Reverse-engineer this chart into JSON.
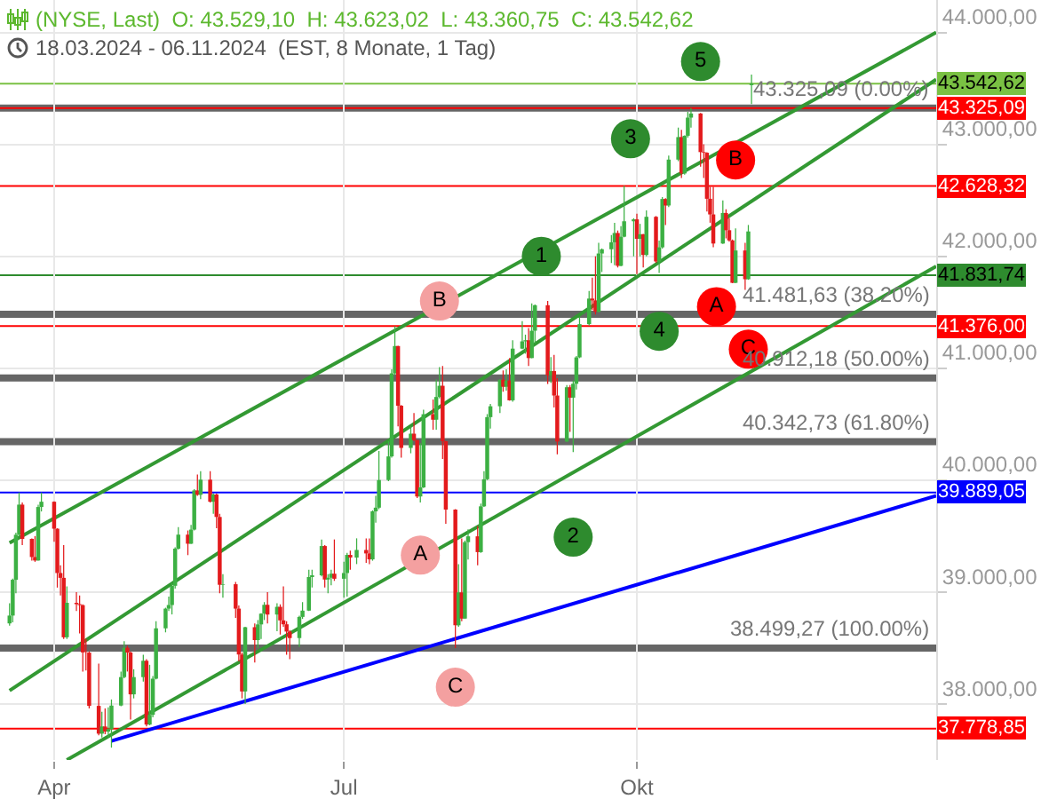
{
  "chart_data": {
    "type": "candlestick",
    "title": "(NYSE, Last)  O: 43.529,10  H: 43.623,02  L: 43.360,75  C: 43.542,62",
    "subtitle": "18.03.2024 - 06.11.2024  (EST, 8 Monate, 1 Tag)",
    "x": [
      "2024-03-18",
      "2024-03-19",
      "2024-03-20",
      "2024-03-21",
      "2024-03-22",
      "2024-03-25",
      "2024-03-26",
      "2024-03-27",
      "2024-03-28",
      "2024-04-01",
      "2024-04-02",
      "2024-04-03",
      "2024-04-04",
      "2024-04-05",
      "2024-04-08",
      "2024-04-09",
      "2024-04-10",
      "2024-04-11",
      "2024-04-12",
      "2024-04-15",
      "2024-04-16",
      "2024-04-17",
      "2024-04-18",
      "2024-04-19",
      "2024-04-22",
      "2024-04-23",
      "2024-04-24",
      "2024-04-25",
      "2024-04-26",
      "2024-04-29",
      "2024-04-30",
      "2024-05-01",
      "2024-05-02",
      "2024-05-03",
      "2024-05-06",
      "2024-05-07",
      "2024-05-08",
      "2024-05-09",
      "2024-05-10",
      "2024-05-13",
      "2024-05-14",
      "2024-05-15",
      "2024-05-16",
      "2024-05-17",
      "2024-05-20",
      "2024-05-21",
      "2024-05-22",
      "2024-05-23",
      "2024-05-24",
      "2024-05-28",
      "2024-05-29",
      "2024-05-30",
      "2024-05-31",
      "2024-06-03",
      "2024-06-04",
      "2024-06-05",
      "2024-06-06",
      "2024-06-07",
      "2024-06-10",
      "2024-06-11",
      "2024-06-12",
      "2024-06-13",
      "2024-06-14",
      "2024-06-17",
      "2024-06-18",
      "2024-06-20",
      "2024-06-21",
      "2024-06-24",
      "2024-06-25",
      "2024-06-26",
      "2024-06-27",
      "2024-06-28",
      "2024-07-01",
      "2024-07-02",
      "2024-07-03",
      "2024-07-05",
      "2024-07-08",
      "2024-07-09",
      "2024-07-10",
      "2024-07-11",
      "2024-07-12",
      "2024-07-15",
      "2024-07-16",
      "2024-07-17",
      "2024-07-18",
      "2024-07-19",
      "2024-07-22",
      "2024-07-23",
      "2024-07-24",
      "2024-07-25",
      "2024-07-26",
      "2024-07-29",
      "2024-07-30",
      "2024-07-31",
      "2024-08-01",
      "2024-08-02",
      "2024-08-05",
      "2024-08-06",
      "2024-08-07",
      "2024-08-08",
      "2024-08-09",
      "2024-08-12",
      "2024-08-13",
      "2024-08-14",
      "2024-08-15",
      "2024-08-16",
      "2024-08-19",
      "2024-08-20",
      "2024-08-21",
      "2024-08-22",
      "2024-08-23",
      "2024-08-26",
      "2024-08-27",
      "2024-08-28",
      "2024-08-29",
      "2024-08-30",
      "2024-09-03",
      "2024-09-04",
      "2024-09-05",
      "2024-09-06",
      "2024-09-09",
      "2024-09-10",
      "2024-09-11",
      "2024-09-12",
      "2024-09-13",
      "2024-09-16",
      "2024-09-17",
      "2024-09-18",
      "2024-09-19",
      "2024-09-20",
      "2024-09-23",
      "2024-09-24",
      "2024-09-25",
      "2024-09-26",
      "2024-09-27",
      "2024-09-30",
      "2024-10-01",
      "2024-10-02",
      "2024-10-03",
      "2024-10-04",
      "2024-10-07",
      "2024-10-08",
      "2024-10-09",
      "2024-10-10",
      "2024-10-11",
      "2024-10-14",
      "2024-10-15",
      "2024-10-16",
      "2024-10-17",
      "2024-10-18",
      "2024-10-21",
      "2024-10-22",
      "2024-10-23",
      "2024-10-24",
      "2024-10-25",
      "2024-10-28",
      "2024-10-29",
      "2024-10-30",
      "2024-10-31",
      "2024-11-01",
      "2024-11-04",
      "2024-11-05",
      "2024-11-06"
    ],
    "ohlc": [
      [
        38720,
        38900,
        38700,
        38790
      ],
      [
        38790,
        39120,
        38730,
        39110
      ],
      [
        39110,
        39530,
        38990,
        39512
      ],
      [
        39512,
        39890,
        39500,
        39781
      ],
      [
        39781,
        39800,
        39420,
        39475
      ],
      [
        39475,
        39480,
        39280,
        39313
      ],
      [
        39313,
        39500,
        39270,
        39282
      ],
      [
        39282,
        39780,
        39280,
        39760
      ],
      [
        39760,
        39890,
        39720,
        39807
      ],
      [
        39807,
        39810,
        39450,
        39566
      ],
      [
        39566,
        39570,
        39040,
        39170
      ],
      [
        39170,
        39240,
        38970,
        39127
      ],
      [
        39127,
        39420,
        38580,
        38596
      ],
      [
        38596,
        39050,
        38580,
        38904
      ],
      [
        38904,
        39000,
        38830,
        38892
      ],
      [
        38892,
        38970,
        38630,
        38883
      ],
      [
        38883,
        38890,
        38290,
        38461
      ],
      [
        38461,
        38580,
        38300,
        38459
      ],
      [
        38459,
        38470,
        37960,
        37983
      ],
      [
        37983,
        38360,
        37720,
        37735
      ],
      [
        37735,
        37930,
        37700,
        37799
      ],
      [
        37799,
        37960,
        37730,
        37753
      ],
      [
        37753,
        37970,
        37700,
        37775
      ],
      [
        37775,
        38040,
        37610,
        37986
      ],
      [
        37986,
        38290,
        37980,
        38240
      ],
      [
        38240,
        38560,
        38230,
        38503
      ],
      [
        38503,
        38520,
        38290,
        38460
      ],
      [
        38460,
        38470,
        37860,
        38086
      ],
      [
        38086,
        38310,
        38050,
        38240
      ],
      [
        38240,
        38440,
        38200,
        38386
      ],
      [
        38386,
        38400,
        37800,
        37816
      ],
      [
        37816,
        38350,
        37810,
        37903
      ],
      [
        37903,
        38250,
        37880,
        38226
      ],
      [
        38226,
        38740,
        38220,
        38676
      ],
      [
        38676,
        38860,
        38640,
        38852
      ],
      [
        38852,
        38960,
        38830,
        38884
      ],
      [
        38884,
        39080,
        38800,
        39056
      ],
      [
        39056,
        39400,
        39030,
        39388
      ],
      [
        39388,
        39580,
        39380,
        39513
      ],
      [
        39513,
        39550,
        39330,
        39432
      ],
      [
        39432,
        39600,
        39430,
        39558
      ],
      [
        39558,
        39920,
        39550,
        39908
      ],
      [
        39908,
        40050,
        39860,
        39869
      ],
      [
        39869,
        40080,
        39830,
        40004
      ],
      [
        40004,
        40080,
        39800,
        39807
      ],
      [
        39807,
        39880,
        39700,
        39872
      ],
      [
        39872,
        39880,
        39570,
        39671
      ],
      [
        39671,
        39700,
        38990,
        39065
      ],
      [
        39065,
        39160,
        38950,
        39070
      ],
      [
        39070,
        39090,
        38770,
        38852
      ],
      [
        38852,
        38880,
        38380,
        38442
      ],
      [
        38442,
        38460,
        38050,
        38112
      ],
      [
        38112,
        38690,
        38000,
        38686
      ],
      [
        38686,
        38720,
        38370,
        38571
      ],
      [
        38571,
        38750,
        38500,
        38711
      ],
      [
        38711,
        38810,
        38580,
        38807
      ],
      [
        38807,
        38910,
        38750,
        38886
      ],
      [
        38886,
        39000,
        38720,
        38799
      ],
      [
        38799,
        38900,
        38650,
        38868
      ],
      [
        38868,
        38890,
        38620,
        38747
      ],
      [
        38747,
        39050,
        38690,
        38712
      ],
      [
        38712,
        38740,
        38440,
        38647
      ],
      [
        38647,
        38660,
        38400,
        38589
      ],
      [
        38589,
        38790,
        38510,
        38778
      ],
      [
        38778,
        38910,
        38760,
        38834
      ],
      [
        38834,
        39200,
        38830,
        39134
      ],
      [
        39134,
        39200,
        39040,
        39150
      ],
      [
        39150,
        39470,
        39140,
        39411
      ],
      [
        39411,
        39420,
        39040,
        39112
      ],
      [
        39112,
        39160,
        38990,
        39128
      ],
      [
        39128,
        39200,
        39060,
        39164
      ],
      [
        39164,
        39470,
        39100,
        39119
      ],
      [
        39119,
        39270,
        38950,
        39170
      ],
      [
        39170,
        39350,
        38960,
        39332
      ],
      [
        39332,
        39370,
        39200,
        39308
      ],
      [
        39308,
        39480,
        39250,
        39376
      ],
      [
        39376,
        39480,
        39260,
        39345
      ],
      [
        39345,
        39480,
        39250,
        39292
      ],
      [
        39292,
        39730,
        39280,
        39721
      ],
      [
        39721,
        39860,
        39620,
        39754
      ],
      [
        39754,
        40260,
        39740,
        40001
      ],
      [
        40001,
        40350,
        39990,
        40212
      ],
      [
        40212,
        40990,
        40200,
        40954
      ],
      [
        40954,
        41376,
        40940,
        41198
      ],
      [
        41198,
        41200,
        40480,
        40665
      ],
      [
        40665,
        40670,
        40200,
        40288
      ],
      [
        40288,
        40480,
        40240,
        40415
      ],
      [
        40415,
        40600,
        40350,
        40358
      ],
      [
        40358,
        40360,
        39840,
        39854
      ],
      [
        39854,
        40330,
        39800,
        39935
      ],
      [
        39935,
        40630,
        39930,
        40589
      ],
      [
        40589,
        40720,
        40450,
        40540
      ],
      [
        40540,
        40900,
        40450,
        40743
      ],
      [
        40743,
        41010,
        40730,
        40843
      ],
      [
        40843,
        41020,
        40190,
        40348
      ],
      [
        40348,
        40350,
        39610,
        39737
      ],
      [
        39737,
        39740,
        38499,
        38703
      ],
      [
        38703,
        39250,
        38690,
        38997
      ],
      [
        38997,
        39480,
        38740,
        38763
      ],
      [
        38763,
        39460,
        38760,
        39446
      ],
      [
        39446,
        39560,
        39290,
        39498
      ],
      [
        39498,
        39590,
        39240,
        39357
      ],
      [
        39357,
        39790,
        39350,
        39766
      ],
      [
        39766,
        40080,
        39760,
        40008
      ],
      [
        40008,
        40590,
        40000,
        40563
      ],
      [
        40563,
        40680,
        40460,
        40660
      ],
      [
        40660,
        40900,
        40600,
        40897
      ],
      [
        40897,
        40980,
        40790,
        40834
      ],
      [
        40834,
        40990,
        40800,
        40890
      ],
      [
        40890,
        41090,
        40710,
        40713
      ],
      [
        40713,
        41250,
        40700,
        41175
      ],
      [
        41175,
        41420,
        41170,
        41240
      ],
      [
        41240,
        41300,
        41130,
        41250
      ],
      [
        41250,
        41360,
        41020,
        41091
      ],
      [
        41091,
        41580,
        41090,
        41335
      ],
      [
        41335,
        41570,
        41220,
        41563
      ],
      [
        41563,
        41600,
        40860,
        40937
      ],
      [
        40937,
        41100,
        40870,
        40975
      ],
      [
        40975,
        41120,
        40650,
        40756
      ],
      [
        40756,
        40910,
        40230,
        40345
      ],
      [
        40345,
        40850,
        40340,
        40830
      ],
      [
        40830,
        40850,
        40430,
        40737
      ],
      [
        40737,
        40890,
        40250,
        40861
      ],
      [
        40861,
        41110,
        40810,
        41097
      ],
      [
        41097,
        41460,
        41090,
        41394
      ],
      [
        41394,
        41690,
        41380,
        41622
      ],
      [
        41622,
        41810,
        41520,
        41606
      ],
      [
        41606,
        42000,
        41480,
        41504
      ],
      [
        41504,
        42120,
        41500,
        42025
      ],
      [
        42025,
        42070,
        41860,
        42063
      ],
      [
        42063,
        42190,
        41940,
        42125
      ],
      [
        42125,
        42300,
        41920,
        42208
      ],
      [
        42208,
        42230,
        41900,
        41915
      ],
      [
        41915,
        42270,
        41910,
        42175
      ],
      [
        42175,
        42630,
        42170,
        42313
      ],
      [
        42313,
        42340,
        42000,
        42330
      ],
      [
        42330,
        42380,
        41840,
        42156
      ],
      [
        42156,
        42290,
        42000,
        42197
      ],
      [
        42197,
        42200,
        41900,
        42012
      ],
      [
        42012,
        42410,
        42000,
        42353
      ],
      [
        42353,
        42360,
        41940,
        41954
      ],
      [
        41954,
        42140,
        41850,
        42080
      ],
      [
        42080,
        42530,
        42070,
        42512
      ],
      [
        42512,
        42520,
        42280,
        42454
      ],
      [
        42454,
        42900,
        42440,
        42864
      ],
      [
        42864,
        43150,
        42850,
        43065
      ],
      [
        43065,
        43130,
        42700,
        42740
      ],
      [
        42740,
        43080,
        42730,
        43077
      ],
      [
        43077,
        43290,
        43060,
        43239
      ],
      [
        43239,
        43325,
        43150,
        43276
      ],
      [
        43276,
        43280,
        42800,
        42931
      ],
      [
        42931,
        43000,
        42700,
        42925
      ],
      [
        42925,
        42930,
        42400,
        42514
      ],
      [
        42514,
        42620,
        42300,
        42374
      ],
      [
        42374,
        42620,
        42080,
        42114
      ],
      [
        42114,
        42500,
        42110,
        42387
      ],
      [
        42387,
        42420,
        42160,
        42233
      ],
      [
        42233,
        42340,
        42130,
        42142
      ],
      [
        42142,
        42150,
        41760,
        41763
      ],
      [
        41763,
        42250,
        41760,
        42052
      ],
      [
        42052,
        42120,
        41700,
        41795
      ],
      [
        41795,
        42280,
        41790,
        42222
      ],
      [
        43529.1,
        43623.02,
        43360.75,
        43542.62
      ]
    ],
    "xlim": [
      "2024-03-15",
      "2025-01-03"
    ],
    "xticks": [
      {
        "value": "2024-04-01",
        "label": "Apr"
      },
      {
        "value": "2024-07-01",
        "label": "Jul"
      },
      {
        "value": "2024-10-01",
        "label": "Okt"
      }
    ],
    "ylim": [
      37500,
      44290
    ],
    "yticks": [
      {
        "value": 38000,
        "label": "38.000,00"
      },
      {
        "value": 39000,
        "label": "39.000,00"
      },
      {
        "value": 40000,
        "label": "40.000,00"
      },
      {
        "value": 41000,
        "label": "41.000,00"
      },
      {
        "value": 42000,
        "label": "42.000,00"
      },
      {
        "value": 43000,
        "label": "43.000,00"
      },
      {
        "value": 44000,
        "label": "44.000,00"
      }
    ],
    "grid": true,
    "marker": "none",
    "series": [
      {
        "type": "line",
        "color": "#339933",
        "x": [
          "2024-03-18",
          "2025-01-03"
        ],
        "values": [
          39440,
          44000
        ]
      },
      {
        "type": "line",
        "color": "#339933",
        "x": [
          "2024-03-18",
          "2025-01-03"
        ],
        "values": [
          38120,
          43580
        ]
      },
      {
        "type": "line",
        "color": "#339933",
        "x": [
          "2024-04-05",
          "2025-01-03"
        ],
        "values": [
          37500,
          41910
        ]
      },
      {
        "type": "line",
        "color": "#0000ff",
        "x": [
          "2024-04-19",
          "2025-01-03"
        ],
        "values": [
          37670,
          39860
        ]
      },
      {
        "type": "scatter",
        "marker": "circle",
        "name": "B",
        "color": "#f4a0a0",
        "x": [
          "2024-07-31"
        ],
        "values": [
          41600
        ]
      },
      {
        "type": "scatter",
        "marker": "circle",
        "name": "A",
        "color": "#f4a0a0",
        "x": [
          "2024-07-25"
        ],
        "values": [
          39330
        ]
      },
      {
        "type": "scatter",
        "marker": "circle",
        "name": "C",
        "color": "#f4a0a0",
        "x": [
          "2024-08-05"
        ],
        "values": [
          38150
        ]
      },
      {
        "type": "scatter",
        "marker": "circle",
        "name": "1",
        "color": "#2e8b2e",
        "x": [
          "2024-09-01"
        ],
        "values": [
          42000
        ]
      },
      {
        "type": "scatter",
        "marker": "circle",
        "name": "2",
        "color": "#2e8b2e",
        "x": [
          "2024-09-11"
        ],
        "values": [
          39490
        ]
      },
      {
        "type": "scatter",
        "marker": "circle",
        "name": "3",
        "color": "#2e8b2e",
        "x": [
          "2024-09-29"
        ],
        "values": [
          43050
        ]
      },
      {
        "type": "scatter",
        "marker": "circle",
        "name": "4",
        "color": "#2e8b2e",
        "x": [
          "2024-10-08"
        ],
        "values": [
          41330
        ]
      },
      {
        "type": "scatter",
        "marker": "circle",
        "name": "5",
        "color": "#2e8b2e",
        "x": [
          "2024-10-21"
        ],
        "values": [
          43740
        ]
      },
      {
        "type": "scatter",
        "marker": "circle",
        "name": "B",
        "color": "#ff0000",
        "x": [
          "2024-11-01"
        ],
        "values": [
          42860
        ]
      },
      {
        "type": "scatter",
        "marker": "circle",
        "name": "A",
        "color": "#ff0000",
        "x": [
          "2024-10-26"
        ],
        "values": [
          41550
        ]
      },
      {
        "type": "scatter",
        "marker": "circle",
        "name": "C",
        "color": "#ff0000",
        "x": [
          "2024-11-05"
        ],
        "values": [
          41170
        ]
      }
    ],
    "ref_lines": [
      {
        "axis": "y",
        "value": 43325.09,
        "color": "#666666"
      },
      {
        "axis": "y",
        "value": 41481.63,
        "color": "#666666"
      },
      {
        "axis": "y",
        "value": 40912.18,
        "color": "#666666"
      },
      {
        "axis": "y",
        "value": 40342.73,
        "color": "#666666"
      },
      {
        "axis": "y",
        "value": 38499.27,
        "color": "#666666"
      },
      {
        "axis": "y",
        "value": 43542.62,
        "label": "43.542,62",
        "color": "#7ac143"
      },
      {
        "axis": "y",
        "value": 43325.09,
        "label": "43.325,09",
        "color": "#ff0000"
      },
      {
        "axis": "y",
        "value": 42628.32,
        "label": "42.628,32",
        "color": "#ff0000"
      },
      {
        "axis": "y",
        "value": 41831.74,
        "label": "41.831,74",
        "color": "#2e8b2e"
      },
      {
        "axis": "y",
        "value": 41376.0,
        "label": "41.376,00",
        "color": "#ff0000"
      },
      {
        "axis": "y",
        "value": 39889.05,
        "label": "39.889,05",
        "color": "#0000ff"
      },
      {
        "axis": "y",
        "value": 37778.85,
        "label": "37.778,85",
        "color": "#ff0000"
      }
    ],
    "annotations": [
      {
        "text": "43.325,09 (0.00%)",
        "x": "2025-01-02",
        "y": 43325.09
      },
      {
        "text": "41.481,63 (38.20%)",
        "x": "2025-01-02",
        "y": 41481.63
      },
      {
        "text": "40.912,18 (50.00%)",
        "x": "2025-01-02",
        "y": 40912.18
      },
      {
        "text": "40.342,73 (61.80%)",
        "x": "2025-01-02",
        "y": 40342.73
      },
      {
        "text": "38.499,27 (100.00%)",
        "x": "2025-01-02",
        "y": 38499.27
      }
    ]
  }
}
